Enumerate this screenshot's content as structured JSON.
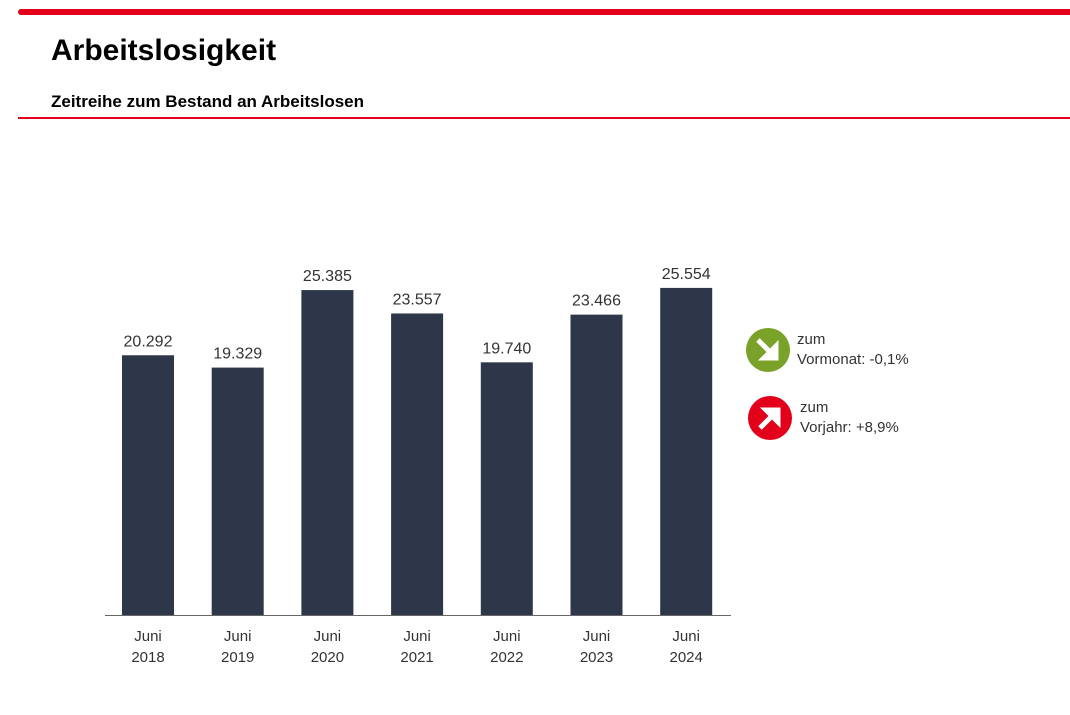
{
  "header": {
    "title": "Arbeitslosigkeit",
    "subtitle": "Zeitreihe zum Bestand an Arbeitslosen"
  },
  "chart_data": {
    "type": "bar",
    "categories": [
      [
        "Juni",
        "2018"
      ],
      [
        "Juni",
        "2019"
      ],
      [
        "Juni",
        "2020"
      ],
      [
        "Juni",
        "2021"
      ],
      [
        "Juni",
        "2022"
      ],
      [
        "Juni",
        "2023"
      ],
      [
        "Juni",
        "2024"
      ]
    ],
    "values": [
      20292,
      19329,
      25385,
      23557,
      19740,
      23466,
      25554
    ],
    "value_labels": [
      "20.292",
      "19.329",
      "25.385",
      "23.557",
      "19.740",
      "23.466",
      "25.554"
    ],
    "ylim": [
      0,
      30000
    ],
    "grid": false,
    "bar_color": "#2e3649",
    "title": "",
    "xlabel": "",
    "ylabel": ""
  },
  "indicators": [
    {
      "line1": "zum",
      "label": "Vormonat:",
      "value": "-0,1%",
      "icon": "arrow-down-right-icon",
      "color": "#7aa228"
    },
    {
      "line1": "zum",
      "label": "Vorjahr:",
      "value": "+8,9%",
      "icon": "arrow-up-right-icon",
      "color": "#e2001a"
    }
  ]
}
